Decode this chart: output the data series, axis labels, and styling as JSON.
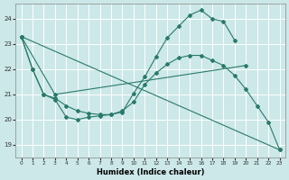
{
  "xlabel": "Humidex (Indice chaleur)",
  "bg_color": "#cce8e8",
  "grid_color": "#ffffff",
  "line_color": "#2a7a6a",
  "xlim": [
    -0.5,
    23.5
  ],
  "ylim": [
    18.5,
    24.6
  ],
  "yticks": [
    19,
    20,
    21,
    22,
    23,
    24
  ],
  "xticks": [
    0,
    1,
    2,
    3,
    4,
    5,
    6,
    7,
    8,
    9,
    10,
    11,
    12,
    13,
    14,
    15,
    16,
    17,
    18,
    19,
    20,
    21,
    22,
    23
  ],
  "lines": [
    {
      "x": [
        0,
        1,
        2,
        3,
        4,
        5,
        6,
        7,
        8,
        9,
        10,
        11,
        12,
        13,
        14,
        15,
        16,
        17,
        18,
        19,
        20,
        21,
        22,
        23
      ],
      "y": [
        23.3,
        22.0,
        21.0,
        20.8,
        20.1,
        20.0,
        20.1,
        20.15,
        20.2,
        20.3,
        21.05,
        21.7,
        22.5,
        23.25,
        23.7,
        24.15,
        24.35,
        24.0,
        23.9,
        23.15,
        null,
        null,
        null,
        null
      ]
    },
    {
      "x": [
        0,
        1,
        2,
        3,
        4,
        5,
        6,
        7,
        8,
        9,
        10,
        11,
        12,
        13,
        14,
        15,
        16,
        17,
        18,
        19,
        20,
        21,
        22,
        23
      ],
      "y": [
        23.3,
        22.0,
        21.0,
        20.85,
        20.55,
        20.35,
        20.25,
        20.2,
        20.2,
        20.35,
        20.7,
        21.4,
        21.85,
        22.2,
        22.45,
        22.55,
        22.55,
        22.35,
        22.15,
        21.75,
        21.2,
        20.55,
        19.9,
        18.8
      ]
    },
    {
      "x": [
        0,
        3,
        20
      ],
      "y": [
        23.3,
        21.0,
        22.15
      ]
    },
    {
      "x": [
        0,
        23
      ],
      "y": [
        23.3,
        18.8
      ]
    }
  ]
}
